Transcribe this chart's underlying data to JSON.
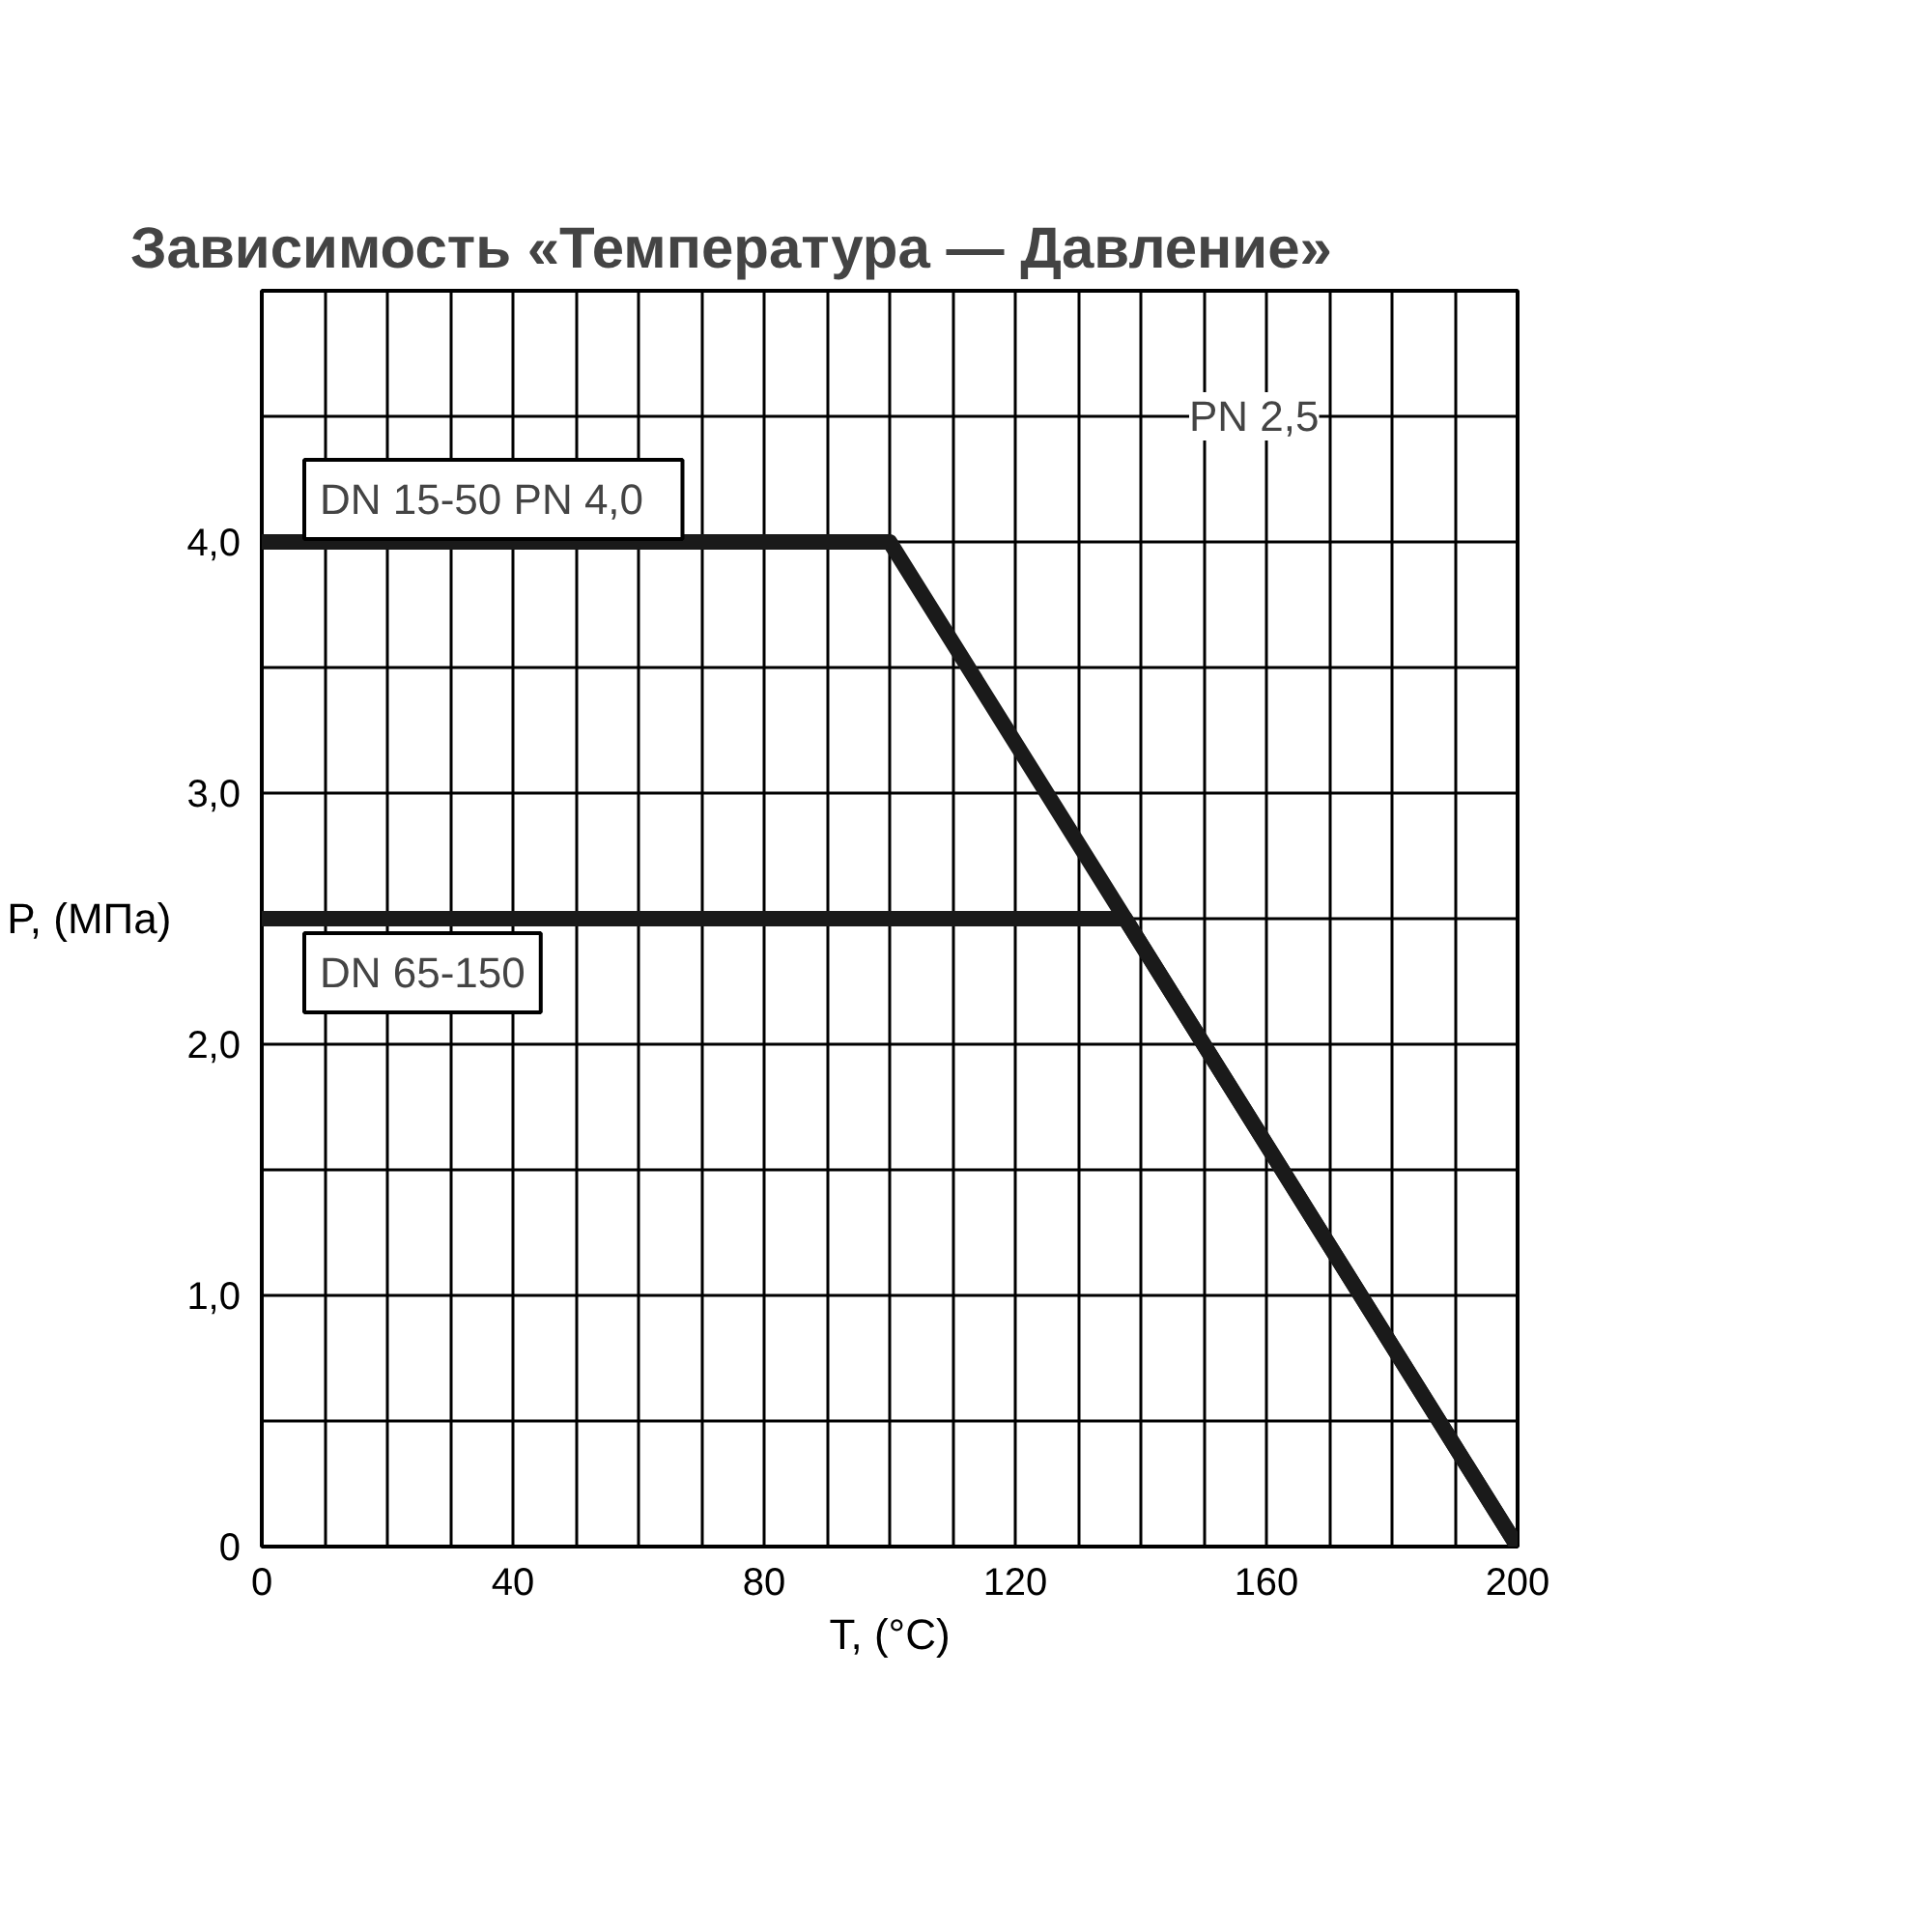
{
  "chart_data": {
    "type": "line",
    "title": "Зависимость «Температура — Давление»",
    "xlabel": "T, (°C)",
    "ylabel": "P, (МПа)",
    "xlim": [
      0,
      200
    ],
    "ylim": [
      0,
      5
    ],
    "xticks": [
      0,
      {
        "value": 10,
        "label": null
      },
      {
        "value": 20,
        "label": null
      },
      {
        "value": 30,
        "label": null
      },
      40,
      {
        "value": 50,
        "label": null
      },
      {
        "value": 60,
        "label": null
      },
      {
        "value": 70,
        "label": null
      },
      80,
      {
        "value": 90,
        "label": null
      },
      {
        "value": 100,
        "label": null
      },
      {
        "value": 110,
        "label": null
      },
      120,
      {
        "value": 130,
        "label": null
      },
      {
        "value": 140,
        "label": null
      },
      {
        "value": 150,
        "label": null
      },
      160,
      {
        "value": 170,
        "label": null
      },
      {
        "value": 180,
        "label": null
      },
      {
        "value": 190,
        "label": null
      },
      200
    ],
    "yticks": [
      0,
      {
        "value": 0.5,
        "label": null
      },
      {
        "value": 1,
        "label": "1,0"
      },
      {
        "value": 1.5,
        "label": null
      },
      {
        "value": 2,
        "label": "2,0"
      },
      {
        "value": 2.5,
        "label": null
      },
      {
        "value": 3,
        "label": "3,0"
      },
      {
        "value": 3.5,
        "label": null
      },
      {
        "value": 4,
        "label": "4,0"
      },
      {
        "value": 4.5,
        "label": null
      }
    ],
    "grid": true,
    "line_style": "solid",
    "marker": "none",
    "series": [
      {
        "name": "DN  15-50  PN 4,0",
        "color": "#1a1a1a",
        "x": [
          0,
          100,
          200
        ],
        "values": [
          4.0,
          4.0,
          0
        ]
      },
      {
        "name": "DN 65-150",
        "color": "#1a1a1a",
        "x": [
          0,
          137.5,
          200
        ],
        "values": [
          2.5,
          2.5,
          0
        ]
      }
    ],
    "annotations": [
      "PN 2,5"
    ]
  }
}
